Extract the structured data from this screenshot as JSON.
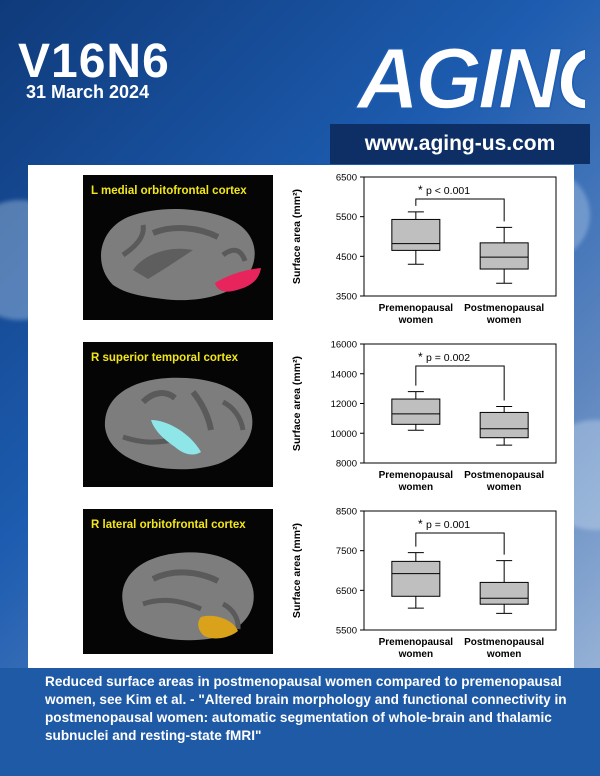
{
  "cover": {
    "volume": "V16N6",
    "date": "31 March 2024",
    "journal_logo": "AGING",
    "website": "www.aging-us.com"
  },
  "figure": {
    "panels": [
      {
        "region_label": "L medial orbitofrontal cortex",
        "highlight_color": "#e8245c",
        "chart_data": {
          "type": "boxplot",
          "ylabel": "Surface area (mm²)",
          "yticks": [
            3500,
            4500,
            5500,
            6500
          ],
          "ylim": [
            3500,
            6500
          ],
          "categories": [
            "Premenopausal women",
            "Postmenopausal women"
          ],
          "boxes": [
            {
              "whisker_low": 4300,
              "q1": 4650,
              "median": 4820,
              "q3": 5430,
              "whisker_high": 5620
            },
            {
              "whisker_low": 3820,
              "q1": 4180,
              "median": 4480,
              "q3": 4840,
              "whisker_high": 5230
            }
          ],
          "significance": "p < 0.001"
        }
      },
      {
        "region_label": "R superior temporal cortex",
        "highlight_color": "#8fe6e8",
        "chart_data": {
          "type": "boxplot",
          "ylabel": "Surface area (mm²)",
          "yticks": [
            8000,
            10000,
            12000,
            14000,
            16000
          ],
          "ylim": [
            8000,
            16000
          ],
          "categories": [
            "Premenopausal women",
            "Postmenopausal women"
          ],
          "boxes": [
            {
              "whisker_low": 10200,
              "q1": 10600,
              "median": 11300,
              "q3": 12300,
              "whisker_high": 12800
            },
            {
              "whisker_low": 9200,
              "q1": 9700,
              "median": 10300,
              "q3": 11400,
              "whisker_high": 11800
            }
          ],
          "significance": "p = 0.002"
        }
      },
      {
        "region_label": "R lateral orbitofrontal cortex",
        "highlight_color": "#d9a21a",
        "chart_data": {
          "type": "boxplot",
          "ylabel": "Surface area (mm²)",
          "yticks": [
            5500,
            6500,
            7500,
            8500
          ],
          "ylim": [
            5500,
            8500
          ],
          "categories": [
            "Premenopausal women",
            "Postmenopausal women"
          ],
          "boxes": [
            {
              "whisker_low": 6050,
              "q1": 6350,
              "median": 6920,
              "q3": 7230,
              "whisker_high": 7450
            },
            {
              "whisker_low": 5920,
              "q1": 6150,
              "median": 6300,
              "q3": 6700,
              "whisker_high": 7250
            }
          ],
          "significance": "p = 0.001"
        }
      }
    ]
  },
  "caption": "Reduced surface areas in postmenopausal women compared to premenopausal women, see Kim et al. - \"Altered brain morphology and functional connectivity in postmenopausal women: automatic segmentation of whole-brain and thalamic subnuclei and resting-state fMRI\""
}
